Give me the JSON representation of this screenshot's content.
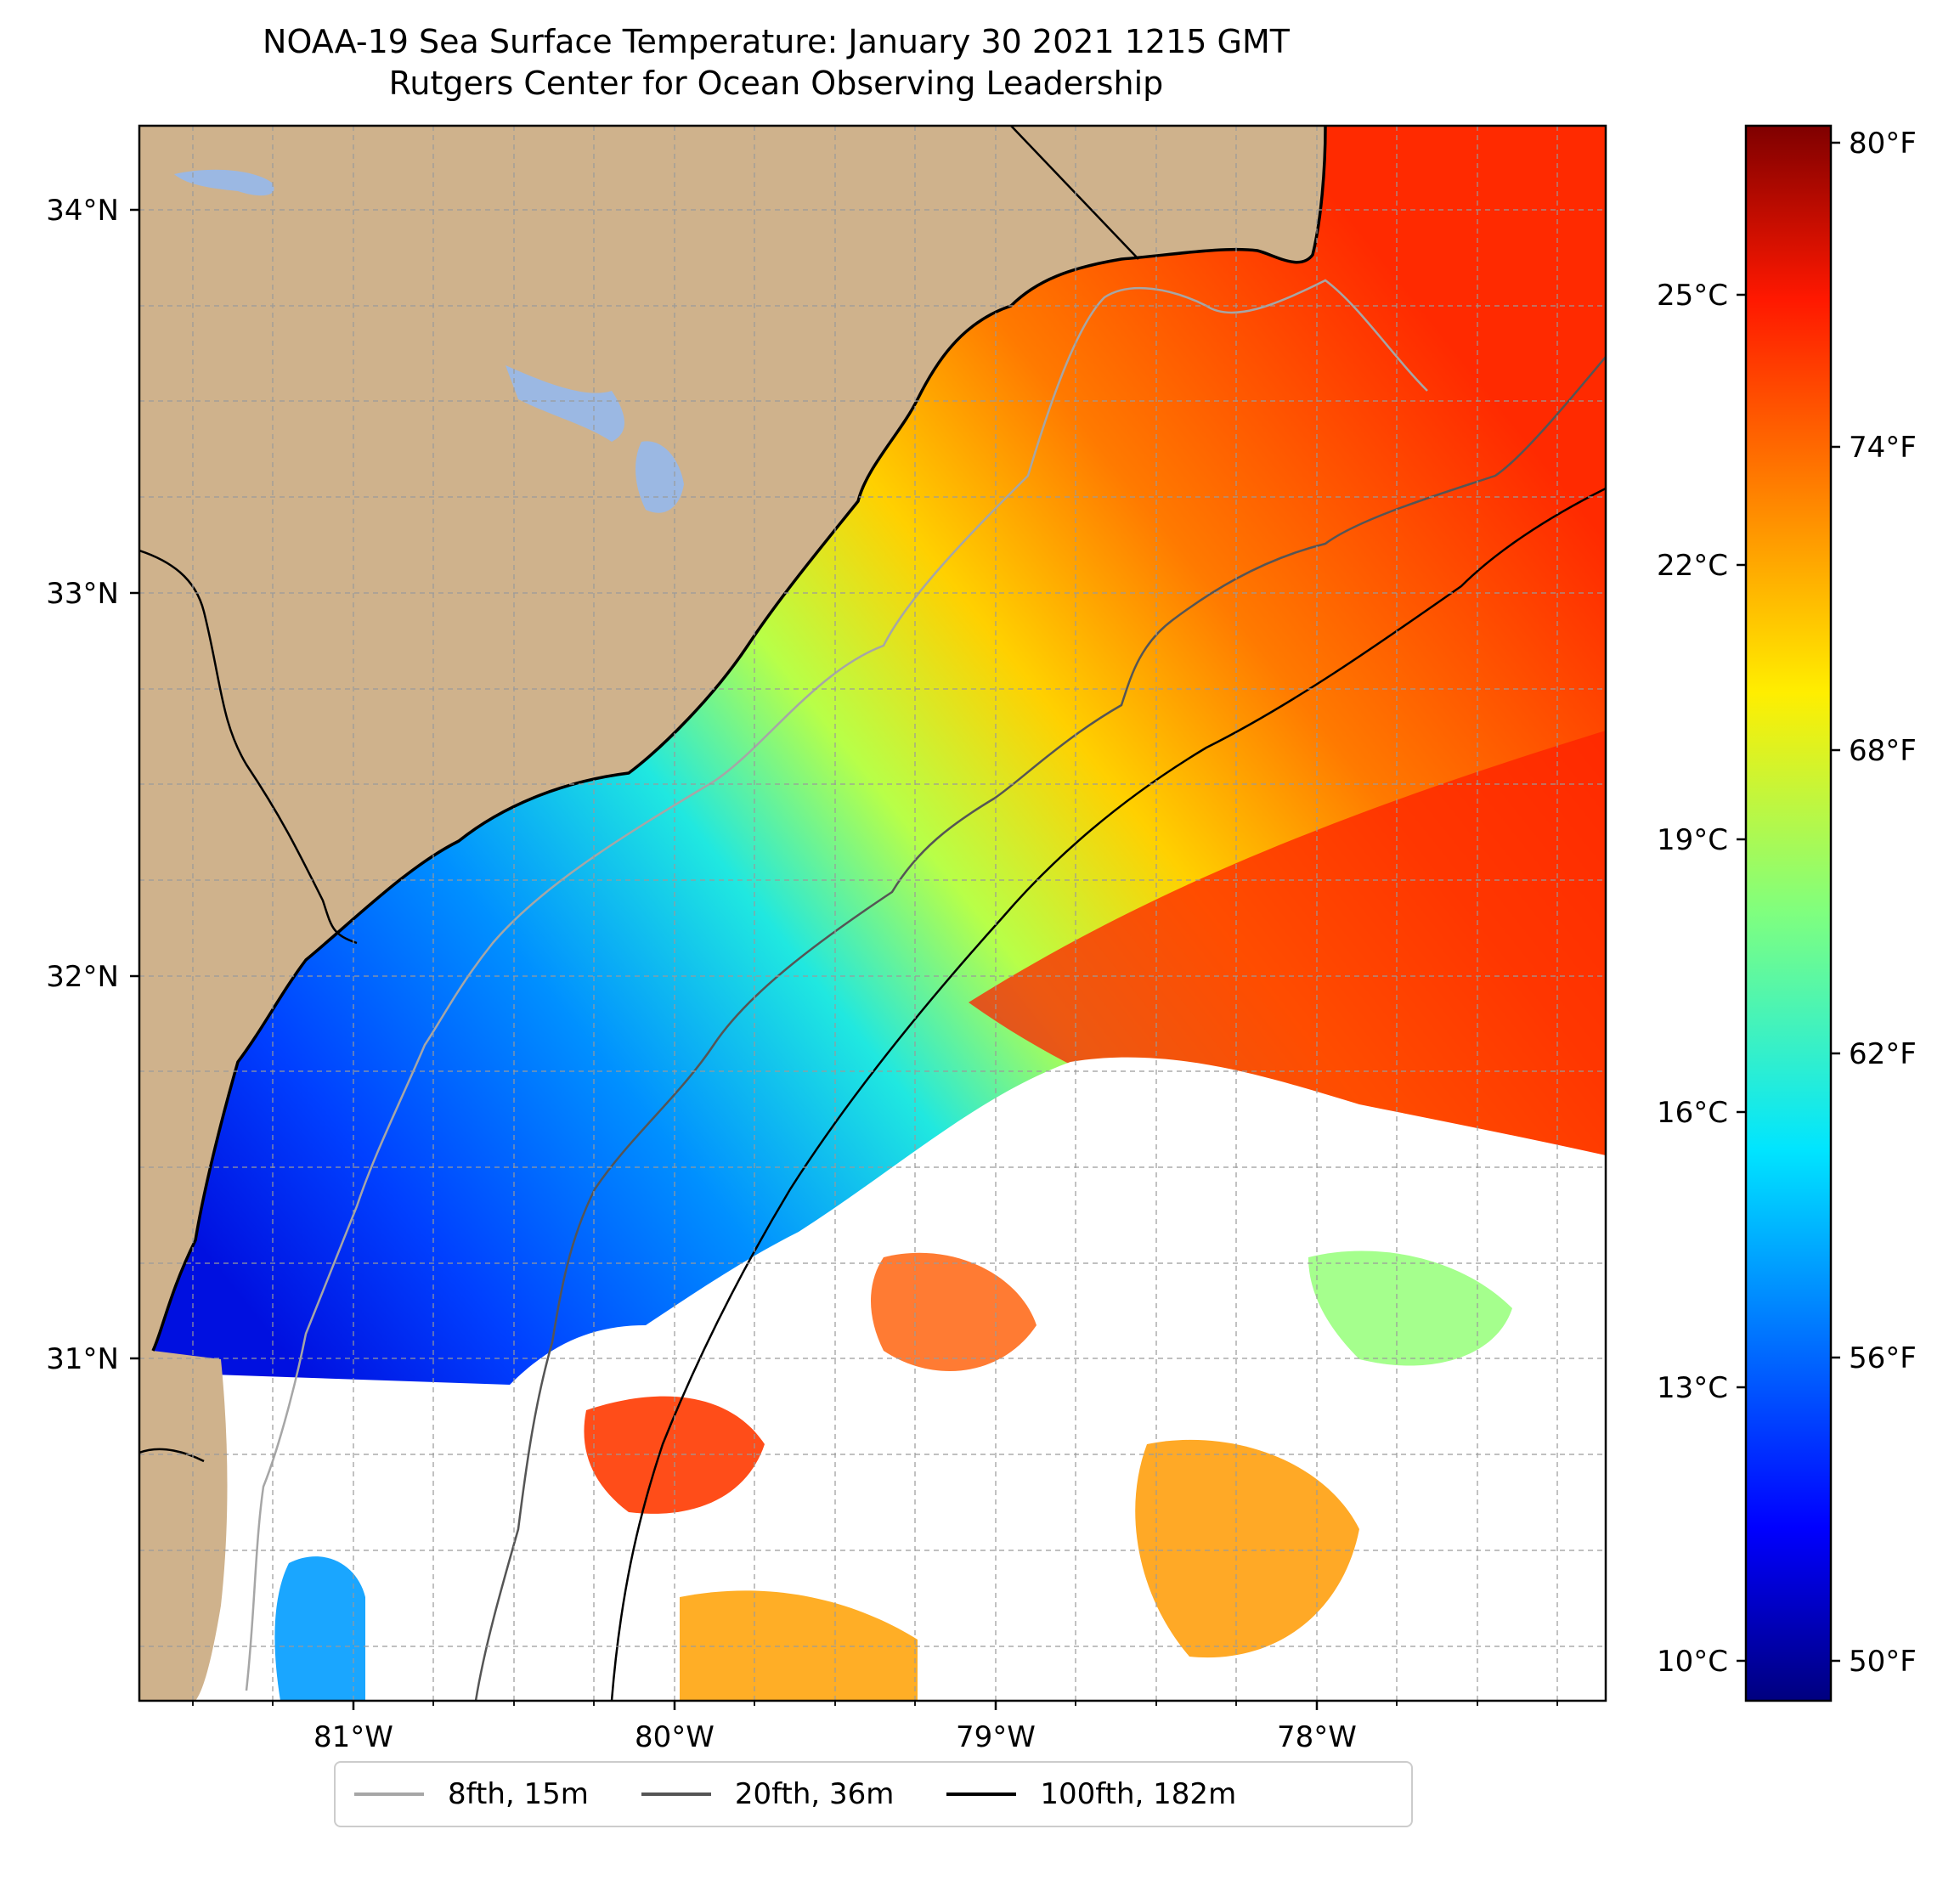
{
  "title": "NOAA-19 Sea Surface Temperature: January 30 2021 1215 GMT",
  "subtitle": "Rutgers Center for Ocean Observing Leadership",
  "map": {
    "lon_range": [
      -81.67,
      -77.2
    ],
    "lat_range": [
      30.22,
      34.22
    ],
    "lon_ticks": [
      "81°W",
      "80°W",
      "79°W",
      "78°W"
    ],
    "lat_ticks": [
      "34°N",
      "33°N",
      "32°N",
      "31°N"
    ],
    "gridlines": true,
    "land_color": "#cfb28c",
    "lake_color": "#9bb8e3"
  },
  "colorbar": {
    "colormap": "jet",
    "celsius_ticks": [
      "25°C",
      "22°C",
      "19°C",
      "16°C",
      "13°C",
      "10°C"
    ],
    "fahrenheit_ticks": [
      "80°F",
      "74°F",
      "68°F",
      "62°F",
      "56°F",
      "50°F"
    ]
  },
  "legend": {
    "placement": "bottom-center",
    "items": [
      {
        "label": "8fth, 15m",
        "color": "#a6a6a6"
      },
      {
        "label": "20fth, 36m",
        "color": "#555555"
      },
      {
        "label": "100fth, 182m",
        "color": "#000000"
      }
    ]
  }
}
